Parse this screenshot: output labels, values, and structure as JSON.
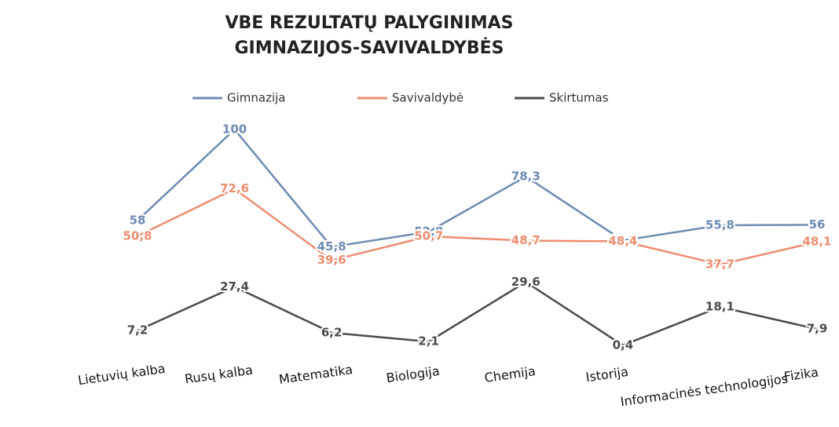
{
  "chart_data": {
    "type": "line",
    "title": [
      "VBE REZULTATŲ PALYGINIMAS",
      "GIMNAZIJOS-SAVIVALDYBĖS"
    ],
    "categories": [
      "Lietuvių kalba",
      "Rusų kalba",
      "Matematika",
      "Biologija",
      "Chemija",
      "Istorija",
      "Informacinės technologijos",
      "Fizika"
    ],
    "series": [
      {
        "name": "Gimnazija",
        "color": "#6d8bb4",
        "values": [
          58,
          100,
          45.8,
          52.8,
          78.3,
          48.8,
          55.8,
          56
        ],
        "value_labels": [
          "58",
          "100",
          "45,8",
          "52,8",
          "78,3",
          "48,8",
          "55,8",
          "56"
        ]
      },
      {
        "name": "Savivaldybė",
        "color": "#ec8d6f",
        "values": [
          50.8,
          72.6,
          39.6,
          50.7,
          48.7,
          48.4,
          37.7,
          48.1
        ],
        "value_labels": [
          "50,8",
          "72,6",
          "39,6",
          "50,7",
          "48,7",
          "48,4",
          "37,7",
          "48,1"
        ]
      },
      {
        "name": "Skirtumas",
        "color": "#4a4a4a",
        "values": [
          7.2,
          27.4,
          6.2,
          2.1,
          29.6,
          0.4,
          18.1,
          7.9
        ],
        "value_labels": [
          "7,2",
          "27,4",
          "6,2",
          "2,1",
          "29,6",
          "0,4",
          "18,1",
          "7,9"
        ]
      }
    ],
    "ylim": [
      0,
      100
    ],
    "legend": "top"
  }
}
